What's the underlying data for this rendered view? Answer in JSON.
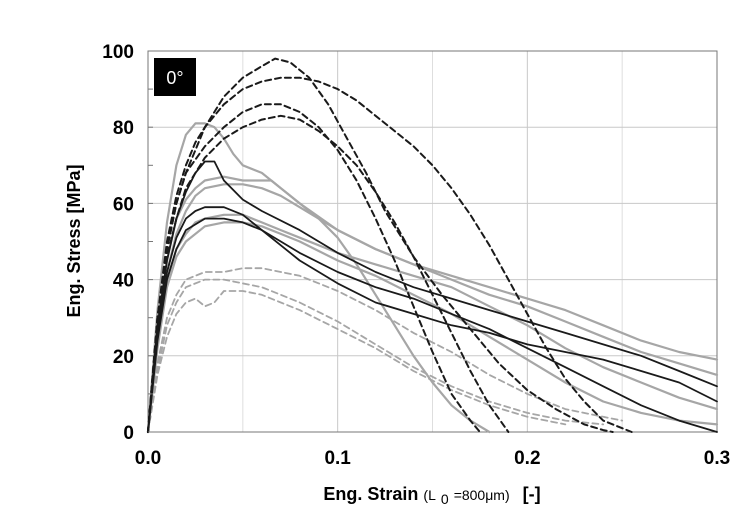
{
  "chart_data": {
    "type": "line",
    "badge": "0°",
    "ylabel": "Eng. Stress [MPa]",
    "xlabel_main": "Eng. Strain",
    "xlabel_paren_open": " (L",
    "xlabel_subscript": "0",
    "xlabel_paren_rest": "=800μm)",
    "xlabel_unit": "[-]",
    "xlim": [
      0,
      0.3
    ],
    "ylim": [
      0,
      100
    ],
    "x_ticks": [
      0.0,
      0.1,
      0.2,
      0.3
    ],
    "x_tick_labels": [
      "0.0",
      "0.1",
      "0.2",
      "0.3"
    ],
    "y_ticks": [
      0,
      20,
      40,
      60,
      80,
      100
    ],
    "y_tick_labels": [
      "0",
      "20",
      "40",
      "60",
      "80",
      "100"
    ],
    "grid": true,
    "colors": {
      "black": "#1a1a1a",
      "gray": "#a6a6a6"
    },
    "series": [
      {
        "style": "black-dashed",
        "x": [
          0,
          0.005,
          0.01,
          0.015,
          0.02,
          0.025,
          0.03,
          0.04,
          0.05,
          0.06,
          0.067,
          0.075,
          0.085,
          0.095,
          0.105,
          0.115,
          0.125,
          0.14,
          0.155,
          0.17,
          0.185,
          0.2,
          0.215,
          0.23,
          0.24,
          0.245
        ],
        "y": [
          0,
          30,
          50,
          62,
          70,
          76,
          80,
          88,
          93,
          96,
          98,
          97,
          93,
          86,
          77,
          68,
          58,
          46,
          36,
          27,
          18,
          11,
          6,
          2,
          0.5,
          0
        ]
      },
      {
        "style": "black-dashed",
        "x": [
          0,
          0.005,
          0.01,
          0.015,
          0.02,
          0.025,
          0.03,
          0.04,
          0.05,
          0.06,
          0.07,
          0.08,
          0.09,
          0.1,
          0.11,
          0.12,
          0.13,
          0.14,
          0.15,
          0.16,
          0.17,
          0.18,
          0.19,
          0.2,
          0.21,
          0.22,
          0.23,
          0.24,
          0.25,
          0.255
        ],
        "y": [
          0,
          30,
          48,
          60,
          68,
          74,
          80,
          86,
          90,
          92,
          93,
          93,
          92,
          90,
          87,
          83,
          79,
          75,
          70,
          64,
          57,
          49,
          40,
          31,
          22,
          14,
          8,
          3,
          1,
          0
        ]
      },
      {
        "style": "black-dashed",
        "x": [
          0,
          0.005,
          0.01,
          0.015,
          0.02,
          0.03,
          0.04,
          0.05,
          0.06,
          0.07,
          0.08,
          0.09,
          0.1,
          0.11,
          0.12,
          0.13,
          0.14,
          0.15,
          0.16,
          0.17,
          0.175
        ],
        "y": [
          0,
          30,
          48,
          60,
          68,
          75,
          80,
          84,
          86,
          86,
          84,
          80,
          74,
          66,
          56,
          45,
          33,
          21,
          10,
          3,
          0
        ]
      },
      {
        "style": "black-dashed",
        "x": [
          0,
          0.005,
          0.01,
          0.015,
          0.02,
          0.03,
          0.04,
          0.05,
          0.06,
          0.07,
          0.08,
          0.09,
          0.1,
          0.11,
          0.12,
          0.13,
          0.14,
          0.15,
          0.16,
          0.17,
          0.18,
          0.19
        ],
        "y": [
          0,
          28,
          46,
          56,
          64,
          72,
          77,
          80,
          82,
          83,
          82,
          79,
          75,
          70,
          63,
          55,
          46,
          36,
          26,
          16,
          7,
          0
        ]
      },
      {
        "style": "black-solid",
        "x": [
          0,
          0.005,
          0.01,
          0.015,
          0.02,
          0.025,
          0.03,
          0.035,
          0.04,
          0.05,
          0.06,
          0.08,
          0.1,
          0.12,
          0.14,
          0.16,
          0.18,
          0.2,
          0.22,
          0.24,
          0.26,
          0.28,
          0.3
        ],
        "y": [
          0,
          28,
          45,
          56,
          63,
          68,
          71,
          71,
          66,
          61,
          58,
          53,
          47,
          42,
          38,
          35,
          32,
          29,
          26,
          23,
          20,
          16,
          12
        ]
      },
      {
        "style": "black-solid",
        "x": [
          0,
          0.005,
          0.01,
          0.015,
          0.02,
          0.025,
          0.03,
          0.035,
          0.04,
          0.05,
          0.06,
          0.07,
          0.08,
          0.1,
          0.12,
          0.14,
          0.16,
          0.18,
          0.2,
          0.22,
          0.24,
          0.26,
          0.28,
          0.3
        ],
        "y": [
          0,
          26,
          42,
          51,
          56,
          58,
          59,
          59,
          59,
          57,
          53,
          49,
          45,
          39,
          34,
          31,
          28,
          26,
          23,
          21,
          19,
          16,
          13,
          8
        ]
      },
      {
        "style": "black-solid",
        "x": [
          0,
          0.005,
          0.01,
          0.015,
          0.02,
          0.03,
          0.04,
          0.05,
          0.06,
          0.07,
          0.08,
          0.1,
          0.12,
          0.14,
          0.16,
          0.18,
          0.2,
          0.22,
          0.24,
          0.26,
          0.28,
          0.3
        ],
        "y": [
          0,
          24,
          40,
          48,
          53,
          56,
          56,
          55,
          53,
          50,
          47,
          42,
          38,
          35,
          31,
          27,
          22,
          17,
          12,
          7,
          3,
          0
        ]
      },
      {
        "style": "gray-solid",
        "x": [
          0,
          0.005,
          0.01,
          0.015,
          0.02,
          0.025,
          0.03,
          0.035,
          0.04,
          0.045,
          0.05,
          0.06,
          0.07,
          0.08,
          0.09,
          0.1,
          0.11,
          0.12,
          0.13,
          0.14,
          0.15,
          0.16,
          0.17,
          0.18
        ],
        "y": [
          0,
          32,
          55,
          70,
          78,
          81,
          81,
          80,
          77,
          73,
          70,
          68,
          64,
          60,
          56,
          51,
          44,
          36,
          28,
          20,
          13,
          7,
          3,
          0
        ]
      },
      {
        "style": "gray-solid",
        "x": [
          0,
          0.005,
          0.01,
          0.015,
          0.02,
          0.025,
          0.03,
          0.04,
          0.05,
          0.06,
          0.065,
          0.07,
          0.08,
          0.1,
          0.12,
          0.14,
          0.16,
          0.18,
          0.2,
          0.22,
          0.24,
          0.26,
          0.28,
          0.3
        ],
        "y": [
          0,
          28,
          45,
          56,
          61,
          64,
          66,
          67,
          66,
          66,
          66,
          64,
          60,
          53,
          48,
          44,
          40,
          36,
          33,
          29,
          25,
          21,
          18,
          15
        ]
      },
      {
        "style": "gray-solid",
        "x": [
          0,
          0.005,
          0.01,
          0.015,
          0.02,
          0.025,
          0.03,
          0.04,
          0.05,
          0.06,
          0.07,
          0.08,
          0.1,
          0.12,
          0.14,
          0.16,
          0.18,
          0.2,
          0.22,
          0.24,
          0.26,
          0.28,
          0.3
        ],
        "y": [
          0,
          26,
          42,
          52,
          58,
          62,
          64,
          65,
          65,
          64,
          62,
          59,
          53,
          48,
          44,
          41,
          38,
          35,
          32,
          28,
          24,
          21,
          19
        ]
      },
      {
        "style": "gray-solid",
        "x": [
          0,
          0.005,
          0.01,
          0.015,
          0.02,
          0.025,
          0.03,
          0.04,
          0.05,
          0.06,
          0.07,
          0.08,
          0.1,
          0.12,
          0.14,
          0.16,
          0.18,
          0.2,
          0.22,
          0.24,
          0.26,
          0.28,
          0.3
        ],
        "y": [
          0,
          24,
          40,
          48,
          52,
          55,
          56,
          57,
          57,
          55,
          53,
          51,
          47,
          44,
          41,
          38,
          33,
          28,
          22,
          17,
          13,
          9,
          6
        ]
      },
      {
        "style": "gray-solid",
        "x": [
          0,
          0.005,
          0.01,
          0.015,
          0.02,
          0.03,
          0.04,
          0.05,
          0.06,
          0.07,
          0.08,
          0.1,
          0.12,
          0.14,
          0.16,
          0.18,
          0.2,
          0.22,
          0.24,
          0.26,
          0.28,
          0.3
        ],
        "y": [
          0,
          22,
          38,
          46,
          50,
          54,
          55,
          55,
          54,
          52,
          50,
          45,
          41,
          36,
          31,
          25,
          19,
          13,
          8,
          5,
          3,
          2
        ]
      },
      {
        "style": "gray-dashed",
        "x": [
          0,
          0.005,
          0.01,
          0.015,
          0.02,
          0.03,
          0.04,
          0.05,
          0.06,
          0.07,
          0.08,
          0.1,
          0.12,
          0.14,
          0.16,
          0.18,
          0.2,
          0.22,
          0.24,
          0.25
        ],
        "y": [
          0,
          18,
          30,
          36,
          40,
          42,
          42,
          43,
          43,
          42,
          41,
          37,
          32,
          26,
          21,
          15,
          10,
          6,
          4,
          3
        ]
      },
      {
        "style": "gray-dashed",
        "x": [
          0,
          0.005,
          0.01,
          0.015,
          0.02,
          0.03,
          0.04,
          0.05,
          0.06,
          0.07,
          0.08,
          0.1,
          0.12,
          0.14,
          0.16,
          0.18,
          0.2,
          0.22,
          0.24
        ],
        "y": [
          0,
          16,
          28,
          34,
          38,
          40,
          40,
          39,
          38,
          36,
          34,
          29,
          23,
          17,
          12,
          8,
          5,
          3,
          2
        ]
      },
      {
        "style": "gray-dashed",
        "x": [
          0,
          0.005,
          0.01,
          0.015,
          0.02,
          0.025,
          0.03,
          0.035,
          0.04,
          0.05,
          0.06,
          0.07,
          0.08,
          0.1,
          0.12,
          0.14,
          0.16,
          0.18,
          0.2,
          0.22
        ],
        "y": [
          0,
          15,
          25,
          31,
          34,
          35,
          33,
          34,
          37,
          37,
          36,
          34,
          32,
          27,
          22,
          16,
          11,
          7,
          4,
          2
        ]
      }
    ]
  }
}
